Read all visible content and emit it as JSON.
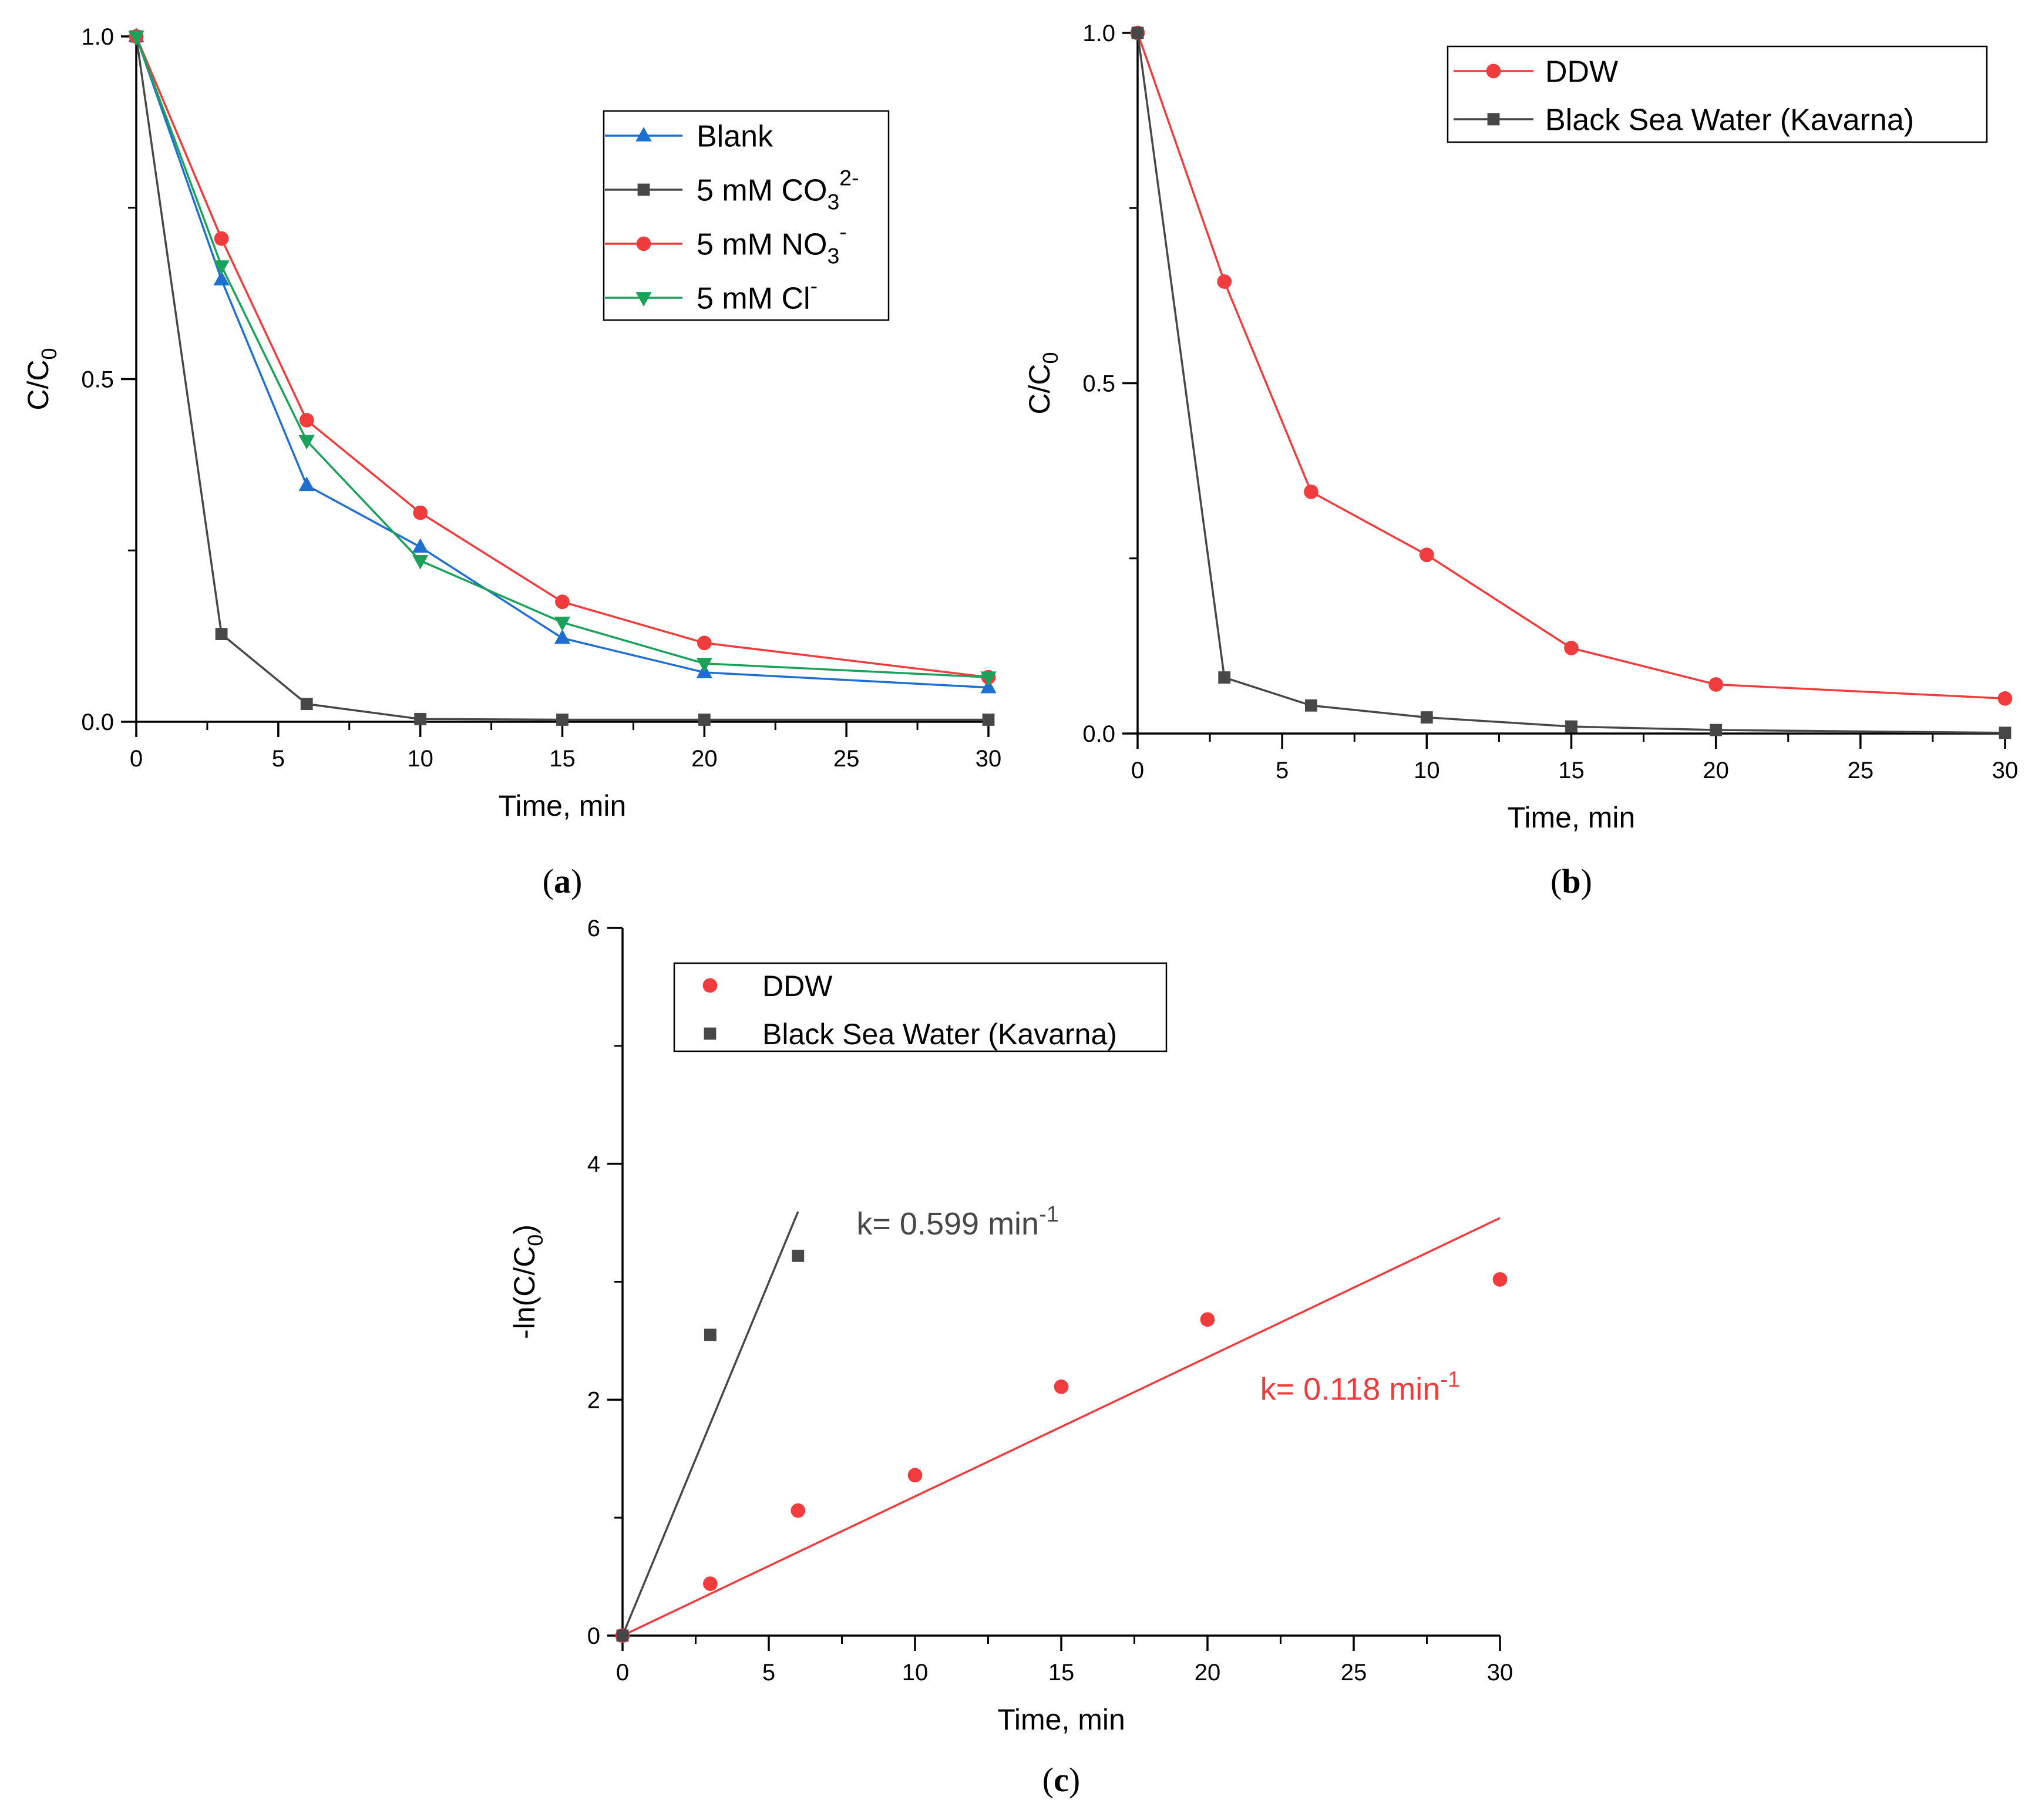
{
  "figure": {
    "panels": [
      "a",
      "b",
      "c"
    ]
  },
  "colors": {
    "blank": "#1f6fd1",
    "carbonate": "#474747",
    "nitrate": "#f03c3c",
    "chloride": "#1aa15a",
    "ddw": "#f03c3c",
    "sea": "#474747",
    "axis": "#000000"
  },
  "chart_data": [
    {
      "panel": "a",
      "caption": "a",
      "type": "line",
      "xlabel": "Time, min",
      "ylabel_main": "C/C",
      "ylabel_sub": "0",
      "xlim": [
        0,
        30
      ],
      "ylim": [
        0,
        1
      ],
      "xticks": [
        "0",
        "5",
        "10",
        "15",
        "20",
        "25",
        "30"
      ],
      "yticks": [
        "0.0",
        "0.5",
        "1.0"
      ],
      "legend_position": "top-right",
      "series": [
        {
          "key": "blank",
          "name": "Blank",
          "sup": "",
          "marker": "triangle-up",
          "x": [
            0,
            3,
            6,
            10,
            15,
            20,
            30
          ],
          "y": [
            1.0,
            0.645,
            0.345,
            0.255,
            0.122,
            0.072,
            0.05
          ]
        },
        {
          "key": "carbonate",
          "name": "5 mM CO",
          "sub": "3",
          "sup": "2-",
          "marker": "square",
          "x": [
            0,
            3,
            6,
            10,
            15,
            20,
            30
          ],
          "y": [
            1.0,
            0.128,
            0.026,
            0.004,
            0.003,
            0.003,
            0.003
          ]
        },
        {
          "key": "nitrate",
          "name": "5 mM NO",
          "sub": "3",
          "sup": "-",
          "marker": "circle",
          "x": [
            0,
            3,
            6,
            10,
            15,
            20,
            30
          ],
          "y": [
            1.0,
            0.705,
            0.44,
            0.305,
            0.175,
            0.115,
            0.065
          ]
        },
        {
          "key": "chloride",
          "name": "5 mM Cl",
          "sup": "-",
          "marker": "triangle-down",
          "x": [
            0,
            3,
            6,
            10,
            15,
            20,
            30
          ],
          "y": [
            1.0,
            0.665,
            0.41,
            0.235,
            0.145,
            0.085,
            0.065
          ]
        }
      ]
    },
    {
      "panel": "b",
      "caption": "b",
      "type": "line",
      "xlabel": "Time, min",
      "ylabel_main": "C/C",
      "ylabel_sub": "0",
      "xlim": [
        0,
        30
      ],
      "ylim": [
        0,
        1
      ],
      "xticks": [
        "0",
        "5",
        "10",
        "15",
        "20",
        "25",
        "30"
      ],
      "yticks": [
        "0.0",
        "0.5",
        "1.0"
      ],
      "legend_position": "top-right",
      "series": [
        {
          "key": "ddw",
          "name": "DDW",
          "marker": "circle",
          "x": [
            0,
            3,
            6,
            10,
            15,
            20,
            30
          ],
          "y": [
            1.0,
            0.645,
            0.345,
            0.255,
            0.122,
            0.07,
            0.05
          ]
        },
        {
          "key": "sea",
          "name": "Black Sea Water (Kavarna)",
          "marker": "square",
          "x": [
            0,
            3,
            6,
            10,
            15,
            20,
            30
          ],
          "y": [
            1.0,
            0.08,
            0.04,
            0.023,
            0.01,
            0.005,
            0.001
          ]
        }
      ]
    },
    {
      "panel": "c",
      "caption": "c",
      "type": "scatter",
      "xlabel": "Time, min",
      "ylabel_main": "-ln(C/C",
      "ylabel_sub": "0",
      "ylabel_tail": ")",
      "xlim": [
        0,
        30
      ],
      "ylim": [
        0,
        6
      ],
      "xticks": [
        "0",
        "5",
        "10",
        "15",
        "20",
        "25",
        "30"
      ],
      "yticks": [
        "0",
        "2",
        "4",
        "6"
      ],
      "legend_position": "top-left",
      "series": [
        {
          "key": "ddw",
          "name": "DDW",
          "marker": "circle",
          "x": [
            0,
            3,
            6,
            10,
            15,
            20,
            30
          ],
          "y": [
            0,
            0.44,
            1.06,
            1.36,
            2.11,
            2.68,
            3.02
          ],
          "fit": {
            "x": [
              0,
              30
            ],
            "y": [
              0,
              3.54
            ]
          },
          "annotation": {
            "prefix": "k= 0.118 min",
            "sup": "-1",
            "x": 21.8,
            "y": 2.0
          }
        },
        {
          "key": "sea",
          "name": "Black Sea Water (Kavarna)",
          "marker": "square",
          "x": [
            0,
            3,
            6
          ],
          "y": [
            0,
            2.55,
            3.22
          ],
          "fit": {
            "x": [
              0,
              6
            ],
            "y": [
              0,
              3.594
            ]
          },
          "annotation": {
            "prefix": "k= 0.599 min",
            "sup": "-1",
            "x": 8.0,
            "y": 3.4
          }
        }
      ]
    }
  ]
}
